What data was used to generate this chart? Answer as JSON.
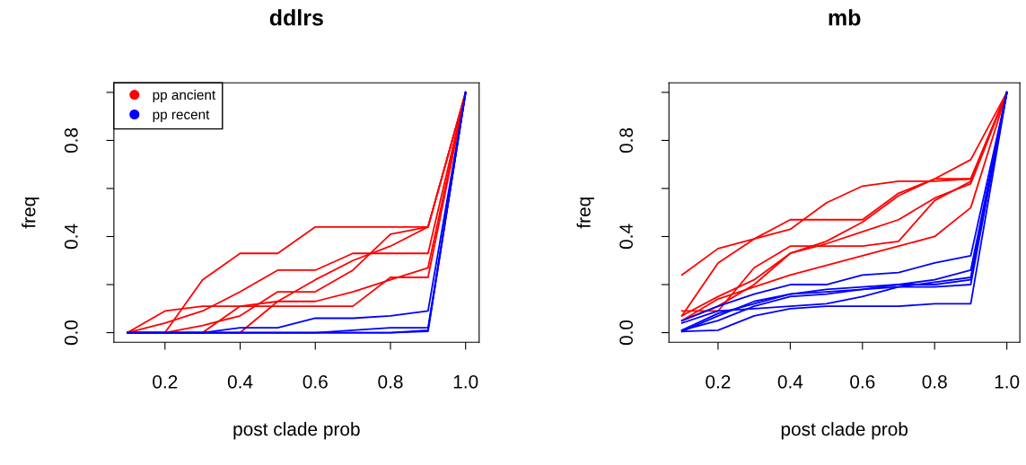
{
  "chart_data": [
    {
      "type": "line",
      "title": "ddlrs",
      "xlabel": "post clade prob",
      "ylabel": "freq",
      "x": [
        0.1,
        0.2,
        0.3,
        0.4,
        0.5,
        0.6,
        0.7,
        0.8,
        0.9,
        1.0
      ],
      "xlim": [
        0.064,
        1.036
      ],
      "ylim": [
        -0.04,
        1.04
      ],
      "xticks": [
        {
          "value": 0.2,
          "label": "0.2"
        },
        {
          "value": 0.4,
          "label": "0.4"
        },
        {
          "value": 0.6,
          "label": "0.6"
        },
        {
          "value": 0.8,
          "label": "0.8"
        },
        {
          "value": 1.0,
          "label": "1.0"
        }
      ],
      "yticks": [
        {
          "value": 0,
          "label": "0.0"
        },
        {
          "value": 0.2,
          "label": null
        },
        {
          "value": 0.4,
          "label": "0.4"
        },
        {
          "value": 0.6,
          "label": null
        },
        {
          "value": 0.8,
          "label": "0.8"
        },
        {
          "value": 1.0,
          "label": null
        }
      ],
      "legend": "top left",
      "grid": false,
      "series": [
        {
          "name": "pp ancient",
          "color": "#ff0000",
          "values": [
            0,
            0,
            0.22,
            0.33,
            0.33,
            0.44,
            0.44,
            0.44,
            0.44,
            1
          ]
        },
        {
          "color": "#ff0000",
          "values": [
            0,
            0.09,
            0.11,
            0.11,
            0.11,
            0.11,
            0.11,
            0.23,
            0.23,
            1
          ]
        },
        {
          "color": "#ff0000",
          "values": [
            0,
            0.04,
            0.09,
            0.17,
            0.26,
            0.26,
            0.33,
            0.33,
            0.33,
            1
          ]
        },
        {
          "color": "#ff0000",
          "values": [
            0,
            0,
            0.03,
            0.07,
            0.17,
            0.17,
            0.26,
            0.41,
            0.44,
            1
          ]
        },
        {
          "color": "#ff0000",
          "values": [
            0,
            0,
            0,
            0.11,
            0.13,
            0.13,
            0.17,
            0.22,
            0.27,
            1
          ]
        },
        {
          "color": "#ff0000",
          "values": [
            0,
            0,
            0,
            0,
            0.13,
            0.22,
            0.3,
            0.36,
            0.44,
            1
          ]
        },
        {
          "name": "pp recent",
          "color": "#0000ff",
          "values": [
            0,
            0,
            0,
            0.02,
            0.02,
            0.06,
            0.06,
            0.07,
            0.09,
            1
          ]
        },
        {
          "color": "#0000ff",
          "values": [
            0,
            0,
            0,
            0,
            0,
            0,
            0.01,
            0.02,
            0.02,
            1
          ]
        },
        {
          "color": "#0000ff",
          "values": [
            0,
            0,
            0,
            0,
            0,
            0,
            0,
            0,
            0.01,
            1
          ]
        },
        {
          "color": "#0000ff",
          "values": [
            0,
            0,
            0,
            0,
            0,
            0,
            0,
            0,
            0.005,
            1
          ]
        }
      ]
    },
    {
      "type": "line",
      "title": "mb",
      "xlabel": "post clade prob",
      "ylabel": "freq",
      "x": [
        0.1,
        0.2,
        0.3,
        0.4,
        0.5,
        0.6,
        0.7,
        0.8,
        0.9,
        1.0
      ],
      "xlim": [
        0.064,
        1.036
      ],
      "ylim": [
        -0.04,
        1.04
      ],
      "xticks": [
        {
          "value": 0.2,
          "label": "0.2"
        },
        {
          "value": 0.4,
          "label": "0.4"
        },
        {
          "value": 0.6,
          "label": "0.6"
        },
        {
          "value": 0.8,
          "label": "0.8"
        },
        {
          "value": 1.0,
          "label": "1.0"
        }
      ],
      "yticks": [
        {
          "value": 0,
          "label": "0.0"
        },
        {
          "value": 0.2,
          "label": null
        },
        {
          "value": 0.4,
          "label": "0.4"
        },
        {
          "value": 0.6,
          "label": null
        },
        {
          "value": 0.8,
          "label": "0.8"
        },
        {
          "value": 1.0,
          "label": null
        }
      ],
      "grid": false,
      "series": [
        {
          "color": "#ff0000",
          "values": [
            0.24,
            0.35,
            0.39,
            0.43,
            0.54,
            0.61,
            0.63,
            0.63,
            0.64,
            1
          ]
        },
        {
          "color": "#ff0000",
          "values": [
            0.07,
            0.29,
            0.39,
            0.47,
            0.47,
            0.47,
            0.58,
            0.64,
            0.72,
            1
          ]
        },
        {
          "color": "#ff0000",
          "values": [
            0.09,
            0.09,
            0.27,
            0.36,
            0.36,
            0.36,
            0.38,
            0.55,
            0.63,
            1
          ]
        },
        {
          "color": "#ff0000",
          "values": [
            0.05,
            0.11,
            0.2,
            0.33,
            0.37,
            0.42,
            0.47,
            0.56,
            0.62,
            1
          ]
        },
        {
          "color": "#ff0000",
          "values": [
            0.07,
            0.15,
            0.22,
            0.33,
            0.38,
            0.46,
            0.57,
            0.64,
            0.64,
            1
          ]
        },
        {
          "color": "#ff0000",
          "values": [
            0.05,
            0.14,
            0.19,
            0.24,
            0.28,
            0.32,
            0.36,
            0.4,
            0.52,
            1
          ]
        },
        {
          "color": "#0000ff",
          "values": [
            0.05,
            0.11,
            0.16,
            0.2,
            0.2,
            0.24,
            0.25,
            0.29,
            0.32,
            1
          ]
        },
        {
          "color": "#0000ff",
          "values": [
            0.01,
            0.08,
            0.12,
            0.16,
            0.18,
            0.19,
            0.2,
            0.22,
            0.26,
            1
          ]
        },
        {
          "color": "#0000ff",
          "values": [
            0.005,
            0.01,
            0.07,
            0.1,
            0.11,
            0.11,
            0.11,
            0.12,
            0.12,
            1
          ]
        },
        {
          "color": "#0000ff",
          "values": [
            0.04,
            0.09,
            0.1,
            0.11,
            0.12,
            0.15,
            0.19,
            0.19,
            0.2,
            1
          ]
        },
        {
          "color": "#0000ff",
          "values": [
            0.01,
            0.05,
            0.11,
            0.15,
            0.16,
            0.18,
            0.19,
            0.21,
            0.23,
            1
          ]
        },
        {
          "color": "#0000ff",
          "values": [
            0.005,
            0.07,
            0.13,
            0.16,
            0.17,
            0.18,
            0.2,
            0.2,
            0.22,
            1
          ]
        }
      ]
    }
  ]
}
